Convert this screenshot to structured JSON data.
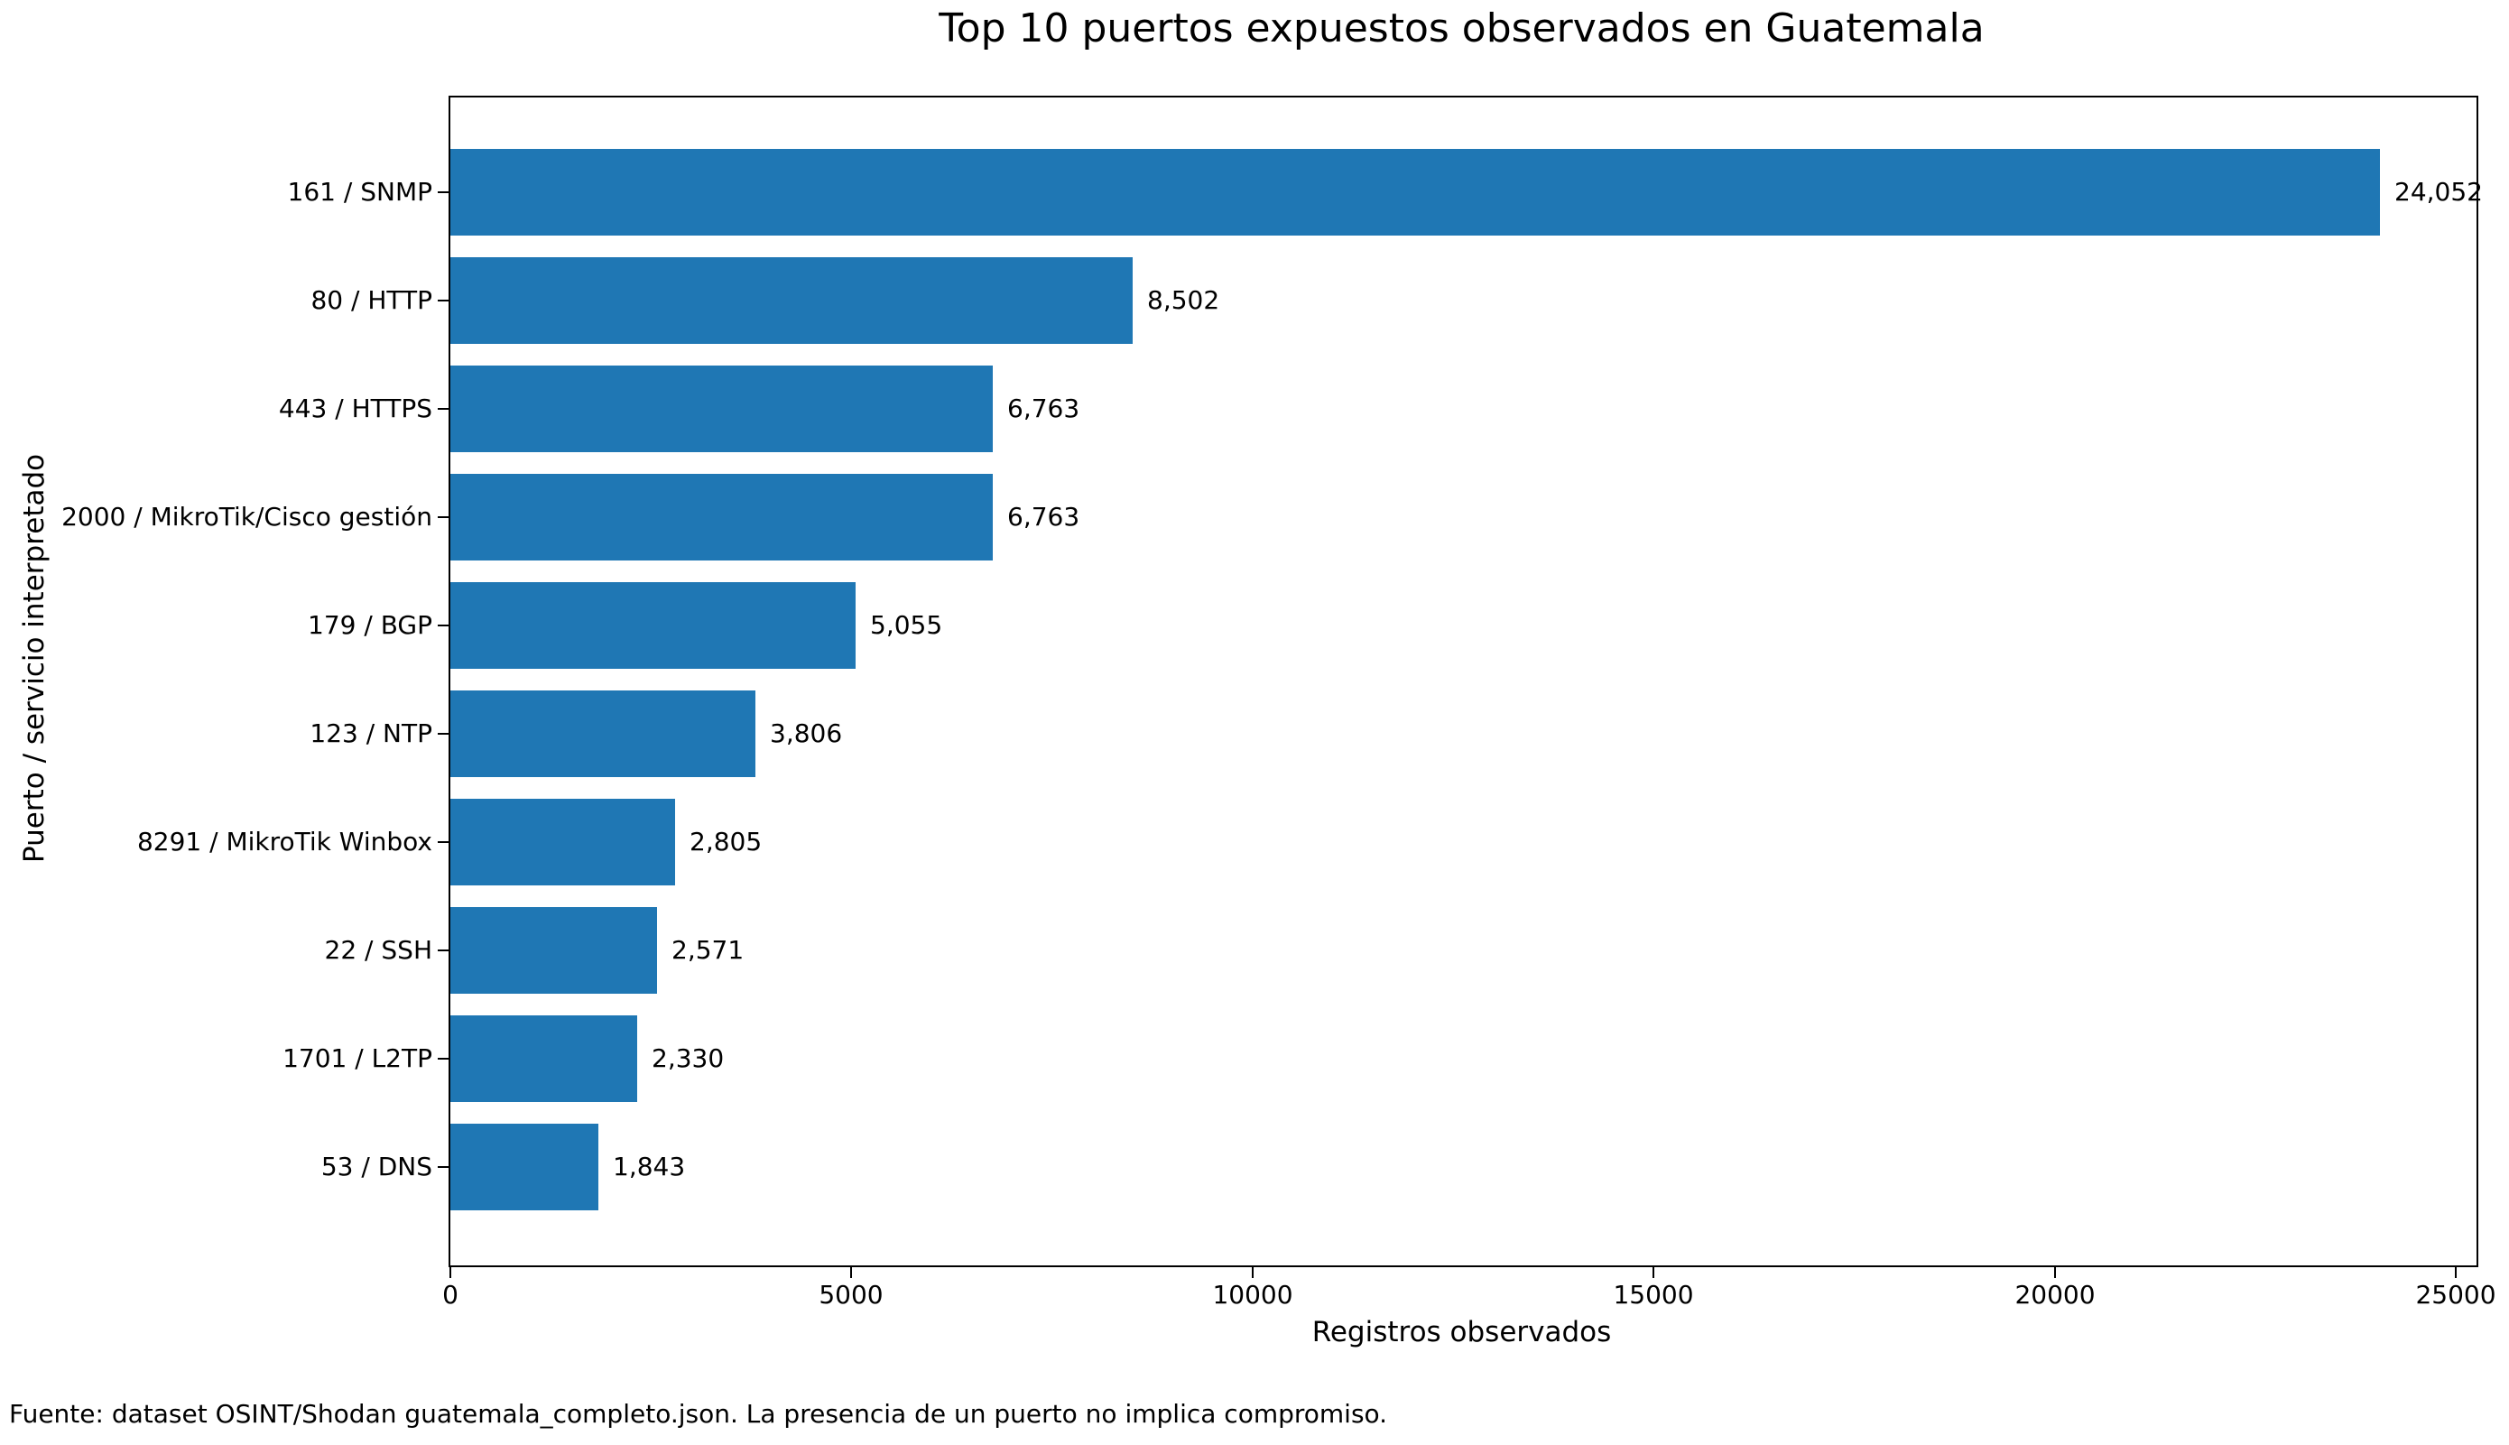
{
  "title": "Top 10 puertos expuestos observados en Guatemala",
  "footer": "Fuente: dataset OSINT/Shodan guatemala_completo.json. La presencia de un puerto no implica compromiso.",
  "chart_data": {
    "type": "bar",
    "orientation": "horizontal",
    "title": "Top 10 puertos expuestos observados en Guatemala",
    "categories": [
      "161 / SNMP",
      "80 / HTTP",
      "443 / HTTPS",
      "2000 / MikroTik/Cisco gestión",
      "179 / BGP",
      "123 / NTP",
      "8291 / MikroTik Winbox",
      "22 / SSH",
      "1701 / L2TP",
      "53 / DNS"
    ],
    "values": [
      24052,
      8502,
      6763,
      6763,
      5055,
      3806,
      2805,
      2571,
      2330,
      1843
    ],
    "value_labels": [
      "24,052",
      "8,502",
      "6,763",
      "6,763",
      "5,055",
      "3,806",
      "2,805",
      "2,571",
      "2,330",
      "1,843"
    ],
    "xlabel": "Registros observados",
    "ylabel": "Puerto / servicio interpretado",
    "xticks": [
      0,
      5000,
      10000,
      15000,
      20000,
      25000
    ],
    "xtick_labels": [
      "0",
      "5000",
      "10000",
      "15000",
      "20000",
      "25000"
    ],
    "xlim": [
      0,
      25255
    ],
    "bar_color": "#1f77b4",
    "grid": false,
    "legend_position": "none"
  }
}
